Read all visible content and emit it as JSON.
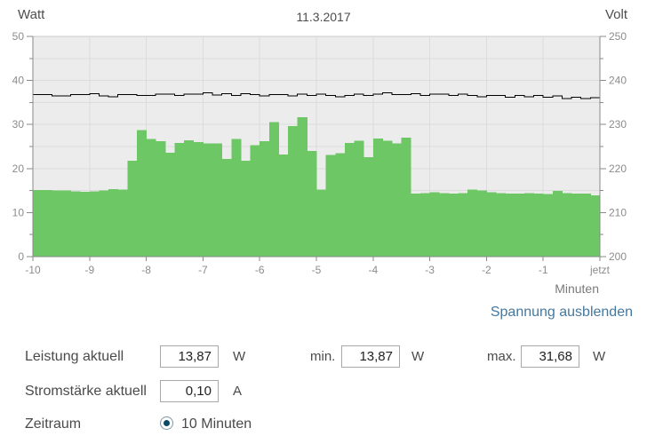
{
  "header": {
    "left_axis_title": "Watt",
    "date_title": "11.3.2017",
    "right_axis_title": "Volt"
  },
  "link": {
    "label": "Spannung ausblenden",
    "color": "#45789e"
  },
  "chart_data": {
    "type": "bar",
    "title": "11.3.2017",
    "sample_interval_seconds": 10,
    "grid": {
      "horizontal_step_watt": 5,
      "vertical_step_minutes": 1
    },
    "plot_background": "#ececec",
    "gridline_color": "#dcdcdc",
    "axis_color": "#8a8a8a",
    "x": {
      "label": "Minuten",
      "ticks": [
        "-10",
        "-9",
        "-8",
        "-7",
        "-6",
        "-5",
        "-4",
        "-3",
        "-2",
        "-1",
        "jetzt"
      ],
      "range_minutes": [
        -10,
        0
      ]
    },
    "y_left": {
      "label": "Watt",
      "ticks": [
        0,
        10,
        20,
        30,
        40,
        50
      ],
      "minor_step": 5,
      "range": [
        0,
        50
      ]
    },
    "y_right": {
      "label": "Volt",
      "ticks": [
        200,
        210,
        220,
        230,
        240,
        250
      ],
      "minor_step": 5,
      "range": [
        200,
        250
      ]
    },
    "series": [
      {
        "name": "Leistung",
        "unit": "W",
        "type": "bar",
        "axis": "left",
        "color": "#6cc764",
        "values": [
          15.1,
          15.1,
          15.0,
          15.0,
          14.8,
          14.7,
          14.8,
          15.0,
          15.3,
          15.2,
          21.8,
          28.7,
          26.7,
          26.2,
          23.6,
          25.8,
          26.4,
          26.0,
          25.7,
          25.7,
          22.2,
          26.7,
          21.8,
          25.3,
          26.2,
          30.5,
          23.2,
          29.6,
          31.68,
          24.0,
          15.2,
          23.1,
          23.5,
          25.8,
          26.3,
          22.6,
          26.8,
          26.3,
          25.7,
          27.0,
          14.3,
          14.4,
          14.6,
          14.4,
          14.3,
          14.4,
          15.2,
          15.0,
          14.6,
          14.4,
          14.3,
          14.3,
          14.4,
          14.3,
          14.2,
          14.9,
          14.4,
          14.3,
          14.3,
          13.87
        ]
      },
      {
        "name": "Spannung",
        "unit": "V",
        "type": "line",
        "axis": "right",
        "color": "#000000",
        "values": [
          236.8,
          236.8,
          236.5,
          236.5,
          236.8,
          236.8,
          237.0,
          236.5,
          236.3,
          236.8,
          236.8,
          236.6,
          236.6,
          236.9,
          236.9,
          236.6,
          236.9,
          236.9,
          237.2,
          236.7,
          237.0,
          236.6,
          237.0,
          236.8,
          236.5,
          236.8,
          236.8,
          236.5,
          236.9,
          236.6,
          236.9,
          236.6,
          236.3,
          236.6,
          236.9,
          236.6,
          236.9,
          237.2,
          236.8,
          236.8,
          237.0,
          236.6,
          236.9,
          236.9,
          236.6,
          236.9,
          236.6,
          236.3,
          236.6,
          236.6,
          236.2,
          236.6,
          236.3,
          236.6,
          236.2,
          236.5,
          235.9,
          236.2,
          235.9,
          236.1
        ]
      }
    ]
  },
  "form": {
    "power": {
      "label": "Leistung aktuell",
      "value": "13,87",
      "unit": "W"
    },
    "min": {
      "label": "min.",
      "value": "13,87",
      "unit": "W"
    },
    "max": {
      "label": "max.",
      "value": "31,68",
      "unit": "W"
    },
    "current": {
      "label": "Stromstärke aktuell",
      "value": "0,10",
      "unit": "A"
    },
    "period": {
      "label": "Zeitraum",
      "option": "10 Minuten",
      "selected": true
    }
  }
}
